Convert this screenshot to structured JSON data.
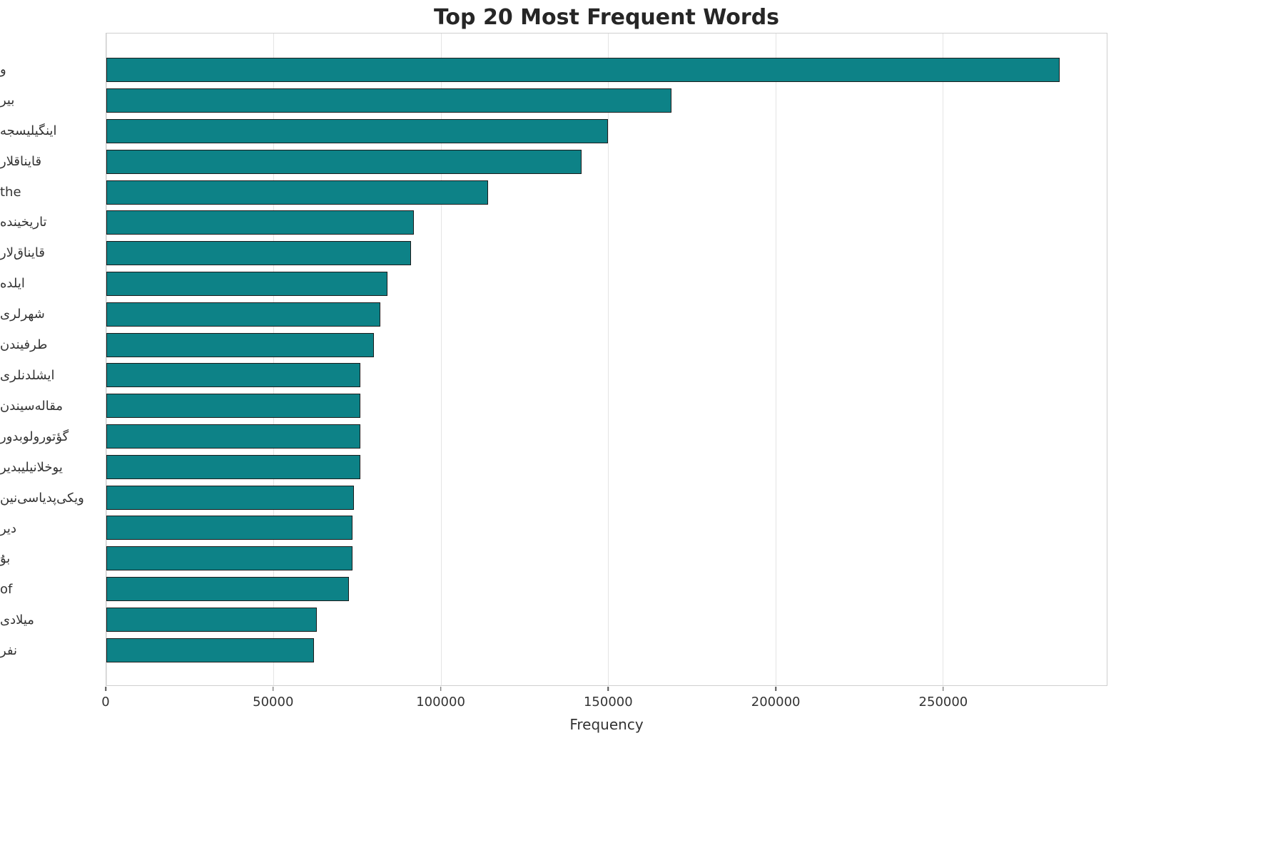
{
  "chart_data": {
    "type": "bar",
    "orientation": "horizontal",
    "title": "Top 20 Most Frequent Words",
    "xlabel": "Frequency",
    "ylabel": "",
    "categories": [
      "و",
      "بیر",
      "اینگیلیسجه",
      "قایناقلار",
      "the",
      "تاریخینده",
      "قایناق‌لار",
      "ایلده",
      "شهرلری",
      "طرفیندن",
      "ایشلدنلری",
      "مقاله‌سیندن",
      "گؤتورولوبدور",
      "یوخلانیلیبدیر",
      "ویکی‌پدیاسی‌نین",
      "دیر",
      "بۇ",
      "of",
      "میلادی",
      "نفر"
    ],
    "values": [
      285000,
      169000,
      150000,
      142000,
      114000,
      92000,
      91000,
      84000,
      82000,
      80000,
      76000,
      76000,
      76000,
      76000,
      74000,
      73500,
      73500,
      72500,
      63000,
      62000
    ],
    "xticks": [
      0,
      50000,
      100000,
      150000,
      200000,
      250000
    ],
    "xlim": [
      0,
      299000
    ],
    "grid": "vertical",
    "legend": "none",
    "bar_color": "#0d8287",
    "bar_edge_color": "#1c1c1c",
    "grid_color": "#e4e4e4",
    "spine_color": "#cfcfcf",
    "tick_text_color": "#333333",
    "title_color": "#262626"
  }
}
